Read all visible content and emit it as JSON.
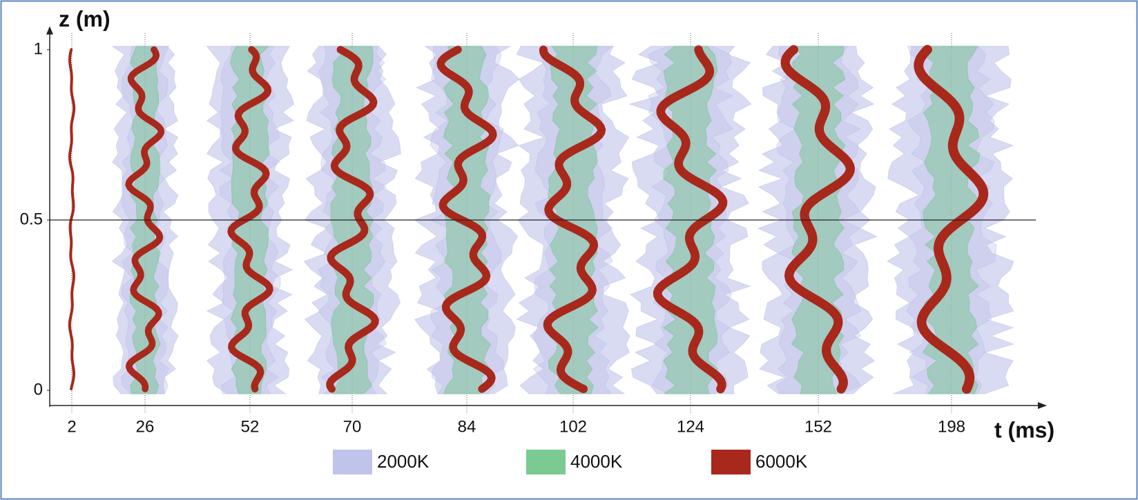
{
  "chart_data": {
    "type": "isosurface-series",
    "ylabel": "z (m)",
    "xlabel": "t (ms)",
    "categories": [
      "2",
      "26",
      "52",
      "70",
      "84",
      "102",
      "124",
      "152",
      "198"
    ],
    "ylim": [
      0,
      1
    ],
    "yticks": [
      0,
      0.5,
      1
    ],
    "reference_line": 0.5,
    "series": [
      {
        "name": "2000K",
        "color": "#b9bde8"
      },
      {
        "name": "4000K",
        "color": "#6cc486"
      },
      {
        "name": "6000K",
        "color": "#a8281c"
      }
    ]
  }
}
